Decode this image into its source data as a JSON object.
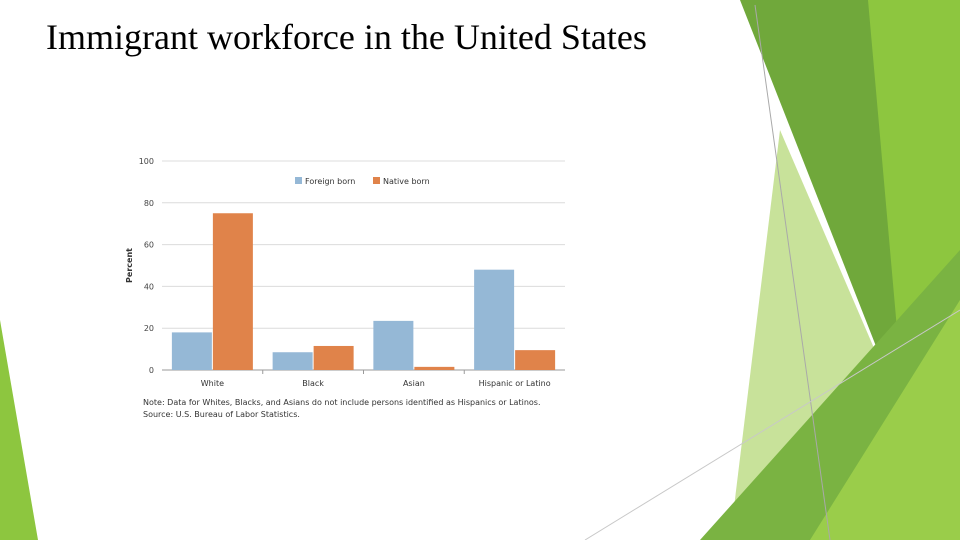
{
  "slide": {
    "title": "Immigrant workforce in the United States"
  },
  "theme": {
    "bg_greens": [
      "#8dc63f",
      "#70a83b",
      "#5a9a2a",
      "#9acd4a",
      "#c8e29a",
      "#dcebc0",
      "#7ab342"
    ]
  },
  "chart_data": {
    "type": "bar",
    "title": "",
    "xlabel": "",
    "ylabel": "Percent",
    "ylim": [
      0,
      100
    ],
    "yticks": [
      0,
      20,
      40,
      60,
      80,
      100
    ],
    "grid": true,
    "legend_position": "top-center",
    "categories": [
      "White",
      "Black",
      "Asian",
      "Hispanic or Latino"
    ],
    "series": [
      {
        "name": "Foreign born",
        "color": "#95b8d6",
        "values": [
          18,
          8.5,
          23.5,
          48
        ]
      },
      {
        "name": "Native born",
        "color": "#e0834a",
        "values": [
          75,
          11.5,
          1.5,
          9.5
        ]
      }
    ]
  },
  "notes": {
    "note": "Note: Data for Whites, Blacks, and Asians do not include persons identified as Hispanics or Latinos.",
    "source": "Source: U.S. Bureau of Labor Statistics."
  }
}
